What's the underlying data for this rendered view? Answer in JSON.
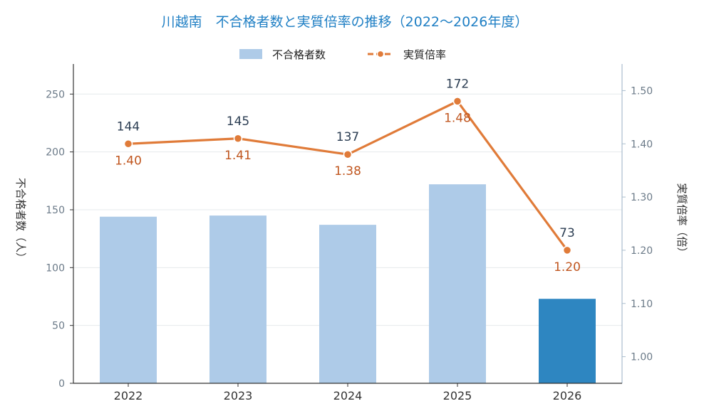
{
  "chart_data": {
    "type": "bar",
    "title": "川越南　不合格者数と実質倍率の推移（2022〜2026年度）",
    "categories": [
      "2022",
      "2023",
      "2024",
      "2025",
      "2026"
    ],
    "series": [
      {
        "name": "不合格者数",
        "type": "bar",
        "axis": "left",
        "values": [
          144,
          145,
          137,
          172,
          73
        ],
        "color": "#aecbe8",
        "highlight_color": "#2e86c1",
        "highlight_index": 4
      },
      {
        "name": "実質倍率",
        "type": "line",
        "axis": "right",
        "values": [
          1.4,
          1.41,
          1.38,
          1.48,
          1.2
        ],
        "labels": [
          "1.40",
          "1.41",
          "1.38",
          "1.48",
          "1.20"
        ],
        "color": "#e07b39"
      }
    ],
    "ylabel": "不合格者数（人）",
    "ylabel_right": "実質倍率（倍）",
    "ylim": [
      0,
      276
    ],
    "ylim_right": [
      0.95,
      1.55
    ],
    "yticks": [
      "0",
      "50",
      "100",
      "150",
      "200",
      "250"
    ],
    "yticks_right": [
      "1.00",
      "1.10",
      "1.20",
      "1.30",
      "1.40",
      "1.50"
    ],
    "grid": true,
    "legend_position": "top-center"
  }
}
